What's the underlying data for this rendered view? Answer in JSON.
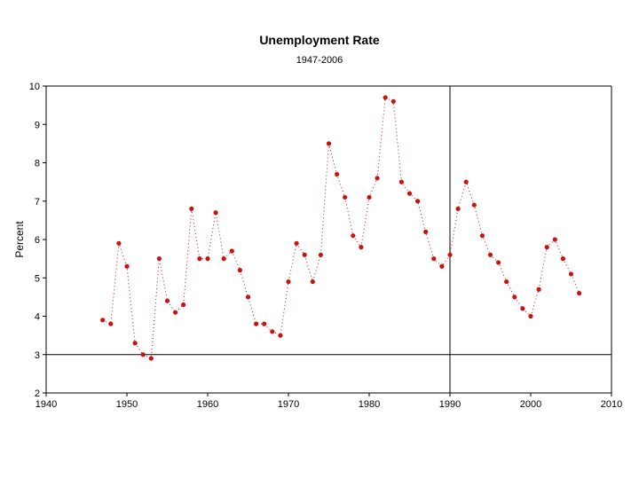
{
  "chart_data": {
    "type": "line",
    "title": "Unemployment Rate",
    "subtitle": "1947-2006",
    "xlabel": "",
    "ylabel": "Percent",
    "xlim": [
      1940,
      2010
    ],
    "ylim": [
      2,
      10
    ],
    "xticks": [
      1940,
      1950,
      1960,
      1970,
      1980,
      1990,
      2000,
      2010
    ],
    "yticks": [
      2,
      3,
      4,
      5,
      6,
      7,
      8,
      9,
      10
    ],
    "reference_lines": {
      "vertical_x": 1990,
      "horizontal_y": 3
    },
    "grid": false,
    "markers": "filled circles",
    "line_style": "dotted",
    "color": "#cc1111",
    "x": [
      1947,
      1948,
      1949,
      1950,
      1951,
      1952,
      1953,
      1954,
      1955,
      1956,
      1957,
      1958,
      1959,
      1960,
      1961,
      1962,
      1963,
      1964,
      1965,
      1966,
      1967,
      1968,
      1969,
      1970,
      1971,
      1972,
      1973,
      1974,
      1975,
      1976,
      1977,
      1978,
      1979,
      1980,
      1981,
      1982,
      1983,
      1984,
      1985,
      1986,
      1987,
      1988,
      1989,
      1990,
      1991,
      1992,
      1993,
      1994,
      1995,
      1996,
      1997,
      1998,
      1999,
      2000,
      2001,
      2002,
      2003,
      2004,
      2005,
      2006
    ],
    "y": [
      3.9,
      3.8,
      5.9,
      5.3,
      3.3,
      3.0,
      2.9,
      5.5,
      4.4,
      4.1,
      4.3,
      6.8,
      5.5,
      5.5,
      6.7,
      5.5,
      5.7,
      5.2,
      4.5,
      3.8,
      3.8,
      3.6,
      3.5,
      4.9,
      5.9,
      5.6,
      4.9,
      5.6,
      8.5,
      7.7,
      7.1,
      6.1,
      5.8,
      7.1,
      7.6,
      9.7,
      9.6,
      7.5,
      7.2,
      7.0,
      6.2,
      5.5,
      5.3,
      5.6,
      6.8,
      7.5,
      6.9,
      6.1,
      5.6,
      5.4,
      4.9,
      4.5,
      4.2,
      4.0,
      4.7,
      5.8,
      6.0,
      5.5,
      5.1,
      4.6
    ]
  }
}
